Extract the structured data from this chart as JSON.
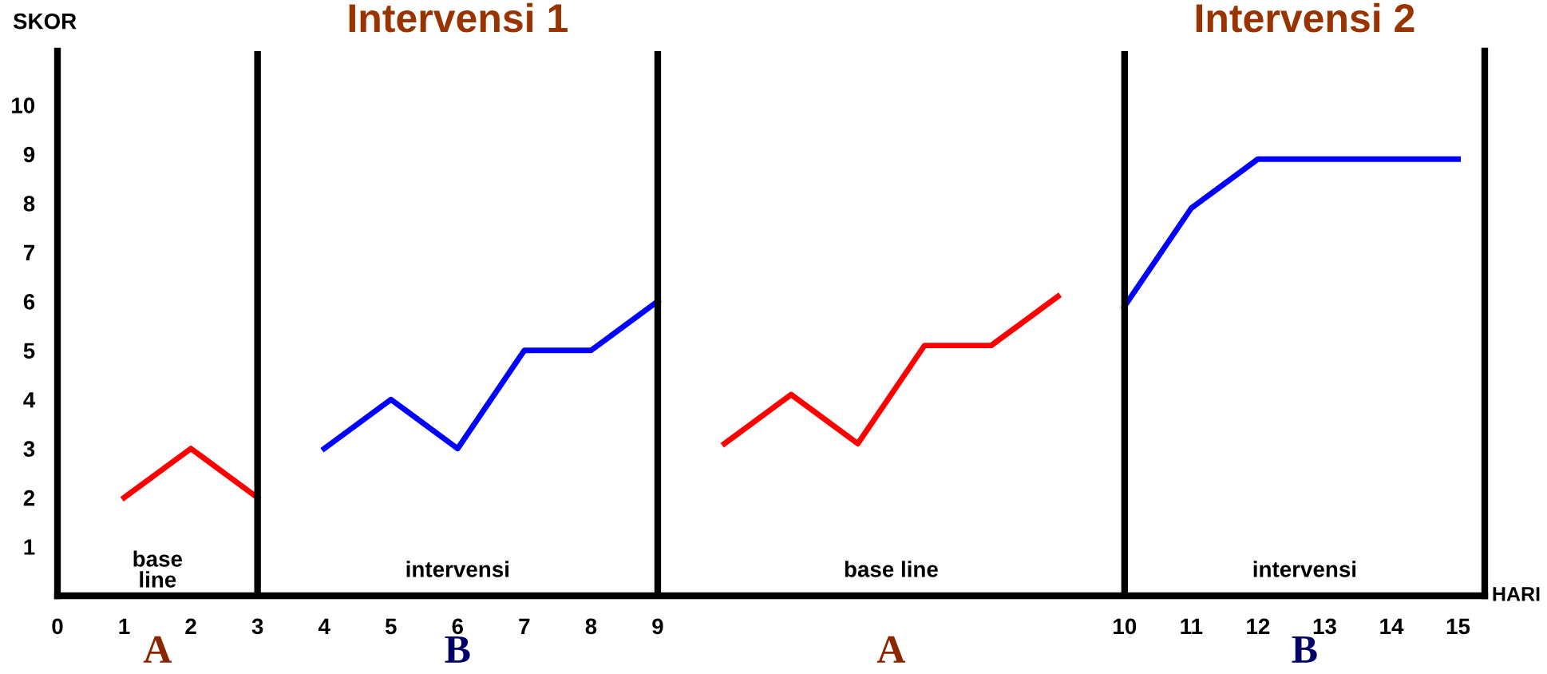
{
  "chart_data": {
    "type": "line",
    "ylabel": "SKOR",
    "xlabel": "HARI",
    "categories": [
      "0",
      "1",
      "2",
      "3",
      "4",
      "5",
      "6",
      "7",
      "8",
      "9",
      null,
      null,
      null,
      null,
      null,
      null,
      "10",
      "11",
      "12",
      "13",
      "14",
      "15"
    ],
    "ylim": [
      0,
      11.1
    ],
    "yticks": [
      1,
      2,
      3,
      4,
      5,
      6,
      7,
      8,
      9,
      10
    ],
    "series": [
      {
        "color": "#ff0000",
        "values": [
          null,
          2,
          3,
          2,
          null,
          null,
          null,
          null,
          null,
          null,
          null,
          null,
          null,
          null,
          null,
          null,
          null,
          null,
          null,
          null,
          null,
          null
        ]
      },
      {
        "color": "#0000ff",
        "values": [
          null,
          null,
          null,
          null,
          3,
          4,
          3,
          5,
          5,
          6,
          null,
          null,
          null,
          null,
          null,
          null,
          null,
          null,
          null,
          null,
          null,
          null
        ]
      },
      {
        "color": "#ff0000",
        "values": [
          null,
          null,
          null,
          null,
          null,
          null,
          null,
          null,
          null,
          null,
          3.1,
          4.1,
          3.1,
          5.1,
          5.1,
          6.1,
          null,
          null,
          null,
          null,
          null,
          null
        ]
      },
      {
        "color": "#0000ff",
        "values": [
          null,
          null,
          null,
          null,
          null,
          null,
          null,
          null,
          null,
          null,
          null,
          null,
          null,
          null,
          null,
          null,
          5.9,
          7.9,
          8.9,
          8.9,
          8.9,
          8.9
        ]
      }
    ],
    "ref_lines": [
      {
        "axis": "x",
        "value": "3",
        "color": "#000000"
      },
      {
        "axis": "x",
        "value": "9",
        "color": "#000000"
      },
      {
        "axis": "x",
        "value": "10",
        "color": "#000000"
      }
    ],
    "annotations": [
      "Intervensi 1",
      "Intervensi 2",
      "base\nline",
      "intervensi",
      "base line",
      "intervensi",
      "A",
      "B",
      "A",
      "B"
    ],
    "grid": false,
    "legend": false
  }
}
